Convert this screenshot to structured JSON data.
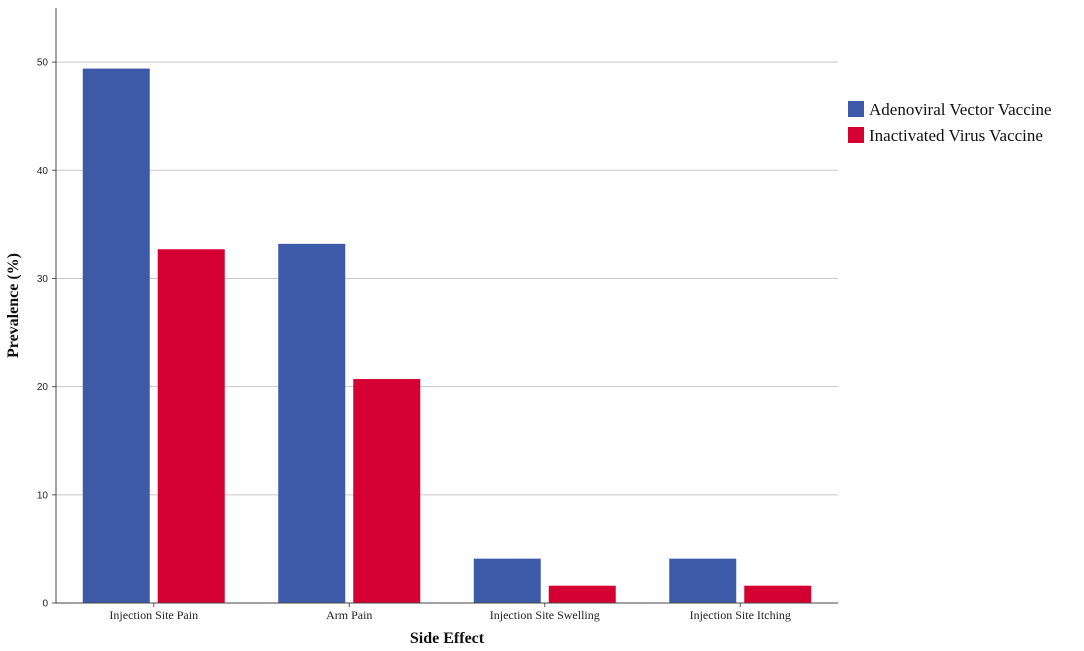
{
  "chart_data": {
    "type": "bar",
    "title": "",
    "xlabel": "Side Effect",
    "ylabel": "Prevalence (%)",
    "categories": [
      "Injection Site Pain",
      "Arm Pain",
      "Injection Site Swelling",
      "Injection Site Itching"
    ],
    "series": [
      {
        "name": "Adenoviral Vector Vaccine",
        "color": "#3d5aa9",
        "values": [
          49.4,
          33.2,
          4.1,
          4.1
        ]
      },
      {
        "name": "Inactivated Virus Vaccine",
        "color": "#d50032",
        "values": [
          32.7,
          20.7,
          1.6,
          1.6
        ]
      }
    ],
    "ylim": [
      0,
      55
    ],
    "yticks": [
      0,
      10,
      20,
      30,
      40,
      50
    ],
    "grid": true,
    "legend_position": "right"
  }
}
